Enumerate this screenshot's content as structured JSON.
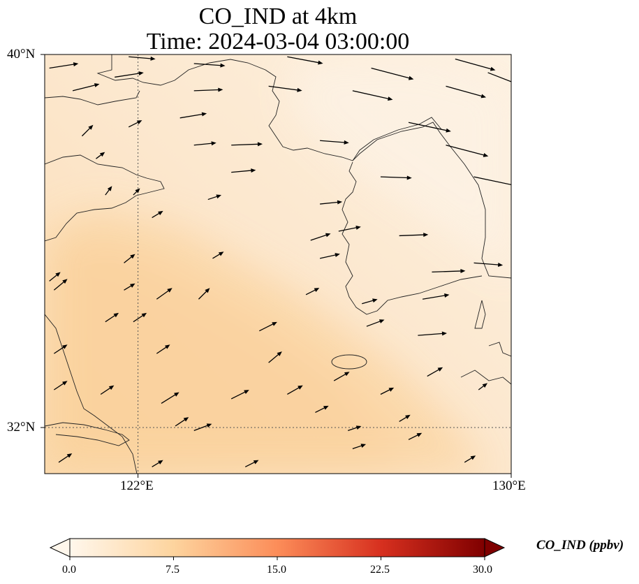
{
  "title": {
    "line1": "CO_IND at 4km",
    "line2": "Time: 2024-03-04 03:00:00"
  },
  "map": {
    "lon_range": [
      120,
      130
    ],
    "lat_range": [
      30.75,
      40
    ],
    "gridlines": {
      "lon": [
        122
      ],
      "lat": [
        32
      ],
      "style": "dotted"
    },
    "field_background": "#fcebd6",
    "plume_color": "#fbd6a4"
  },
  "axes": {
    "y_ticks": [
      {
        "label": "40°N",
        "lat": 40
      },
      {
        "label": "32°N",
        "lat": 32
      }
    ],
    "x_ticks": [
      {
        "label": "122°E",
        "lon": 122
      },
      {
        "label": "130°E",
        "lon": 130
      }
    ]
  },
  "colorbar": {
    "title": "CO_IND (ppbv)",
    "colormap": "OrRd",
    "min": 0.0,
    "max": 30.0,
    "extend": "both",
    "ticks": [
      "0.0",
      "7.5",
      "15.0",
      "22.5",
      "30.0"
    ],
    "colors": [
      "#fff7ec",
      "#fdd49e",
      "#fc8d59",
      "#d7301f",
      "#7f0000"
    ]
  },
  "wind_vectors": [
    {
      "lon": 120.1,
      "lat": 39.7,
      "u": 1.3,
      "v": 0.2
    },
    {
      "lon": 120.6,
      "lat": 39.2,
      "u": 1.2,
      "v": 0.3
    },
    {
      "lon": 121.8,
      "lat": 39.95,
      "u": 1.2,
      "v": -0.1
    },
    {
      "lon": 123.2,
      "lat": 39.8,
      "u": 1.4,
      "v": -0.1
    },
    {
      "lon": 125.2,
      "lat": 39.95,
      "u": 1.6,
      "v": -0.3
    },
    {
      "lon": 127.0,
      "lat": 39.7,
      "u": 1.9,
      "v": -0.5
    },
    {
      "lon": 128.8,
      "lat": 39.9,
      "u": 1.8,
      "v": -0.5
    },
    {
      "lon": 129.5,
      "lat": 39.6,
      "u": 1.8,
      "v": -0.7
    },
    {
      "lon": 121.5,
      "lat": 39.5,
      "u": 1.3,
      "v": 0.2
    },
    {
      "lon": 123.2,
      "lat": 39.2,
      "u": 1.3,
      "v": 0.05
    },
    {
      "lon": 124.8,
      "lat": 39.3,
      "u": 1.5,
      "v": -0.2
    },
    {
      "lon": 126.6,
      "lat": 39.2,
      "u": 1.8,
      "v": -0.4
    },
    {
      "lon": 128.6,
      "lat": 39.3,
      "u": 1.8,
      "v": -0.5
    },
    {
      "lon": 121.8,
      "lat": 38.4,
      "u": 0.6,
      "v": 0.3
    },
    {
      "lon": 120.8,
      "lat": 38.2,
      "u": 0.5,
      "v": 0.5
    },
    {
      "lon": 122.9,
      "lat": 38.6,
      "u": 1.2,
      "v": 0.2
    },
    {
      "lon": 124.0,
      "lat": 38.0,
      "u": 1.4,
      "v": 0.05
    },
    {
      "lon": 125.9,
      "lat": 38.1,
      "u": 1.3,
      "v": -0.1
    },
    {
      "lon": 127.8,
      "lat": 38.5,
      "u": 1.9,
      "v": -0.4
    },
    {
      "lon": 128.6,
      "lat": 38.0,
      "u": 1.9,
      "v": -0.5
    },
    {
      "lon": 123.2,
      "lat": 38.0,
      "u": 1.0,
      "v": 0.1
    },
    {
      "lon": 121.1,
      "lat": 37.7,
      "u": 0.4,
      "v": 0.3
    },
    {
      "lon": 124.0,
      "lat": 37.4,
      "u": 1.1,
      "v": 0.1
    },
    {
      "lon": 127.2,
      "lat": 37.3,
      "u": 1.4,
      "v": -0.05
    },
    {
      "lon": 129.2,
      "lat": 37.3,
      "u": 1.9,
      "v": -0.4
    },
    {
      "lon": 121.3,
      "lat": 36.9,
      "u": 0.3,
      "v": 0.4
    },
    {
      "lon": 121.9,
      "lat": 36.9,
      "u": 0.3,
      "v": 0.3
    },
    {
      "lon": 123.5,
      "lat": 36.8,
      "u": 0.6,
      "v": 0.2
    },
    {
      "lon": 122.3,
      "lat": 36.4,
      "u": 0.5,
      "v": 0.3
    },
    {
      "lon": 125.9,
      "lat": 36.7,
      "u": 1.0,
      "v": 0.1
    },
    {
      "lon": 126.3,
      "lat": 36.1,
      "u": 1.0,
      "v": 0.2
    },
    {
      "lon": 125.7,
      "lat": 35.9,
      "u": 0.9,
      "v": 0.3
    },
    {
      "lon": 127.6,
      "lat": 36.0,
      "u": 1.3,
      "v": 0.05
    },
    {
      "lon": 129.2,
      "lat": 35.4,
      "u": 1.3,
      "v": -0.1
    },
    {
      "lon": 120.1,
      "lat": 35.0,
      "u": 0.5,
      "v": 0.4
    },
    {
      "lon": 121.7,
      "lat": 35.4,
      "u": 0.5,
      "v": 0.4
    },
    {
      "lon": 123.6,
      "lat": 35.5,
      "u": 0.5,
      "v": 0.3
    },
    {
      "lon": 125.9,
      "lat": 35.5,
      "u": 0.9,
      "v": 0.2
    },
    {
      "lon": 128.3,
      "lat": 35.2,
      "u": 1.5,
      "v": 0.05
    },
    {
      "lon": 120.2,
      "lat": 34.8,
      "u": 0.6,
      "v": 0.5
    },
    {
      "lon": 121.7,
      "lat": 34.8,
      "u": 0.5,
      "v": 0.3
    },
    {
      "lon": 122.4,
      "lat": 34.6,
      "u": 0.7,
      "v": 0.5
    },
    {
      "lon": 123.3,
      "lat": 34.6,
      "u": 0.5,
      "v": 0.5
    },
    {
      "lon": 125.6,
      "lat": 34.7,
      "u": 0.6,
      "v": 0.3
    },
    {
      "lon": 126.8,
      "lat": 34.5,
      "u": 0.7,
      "v": 0.2
    },
    {
      "lon": 128.1,
      "lat": 34.6,
      "u": 1.2,
      "v": 0.2
    },
    {
      "lon": 121.3,
      "lat": 34.1,
      "u": 0.6,
      "v": 0.4
    },
    {
      "lon": 121.9,
      "lat": 34.1,
      "u": 0.6,
      "v": 0.4
    },
    {
      "lon": 124.6,
      "lat": 33.9,
      "u": 0.8,
      "v": 0.4
    },
    {
      "lon": 126.9,
      "lat": 34.0,
      "u": 0.8,
      "v": 0.3
    },
    {
      "lon": 128.0,
      "lat": 33.8,
      "u": 1.3,
      "v": 0.1
    },
    {
      "lon": 120.2,
      "lat": 33.4,
      "u": 0.6,
      "v": 0.4
    },
    {
      "lon": 122.4,
      "lat": 33.4,
      "u": 0.6,
      "v": 0.4
    },
    {
      "lon": 124.8,
      "lat": 33.2,
      "u": 0.6,
      "v": 0.5
    },
    {
      "lon": 126.2,
      "lat": 32.8,
      "u": 0.7,
      "v": 0.4
    },
    {
      "lon": 128.2,
      "lat": 32.9,
      "u": 0.7,
      "v": 0.4
    },
    {
      "lon": 120.2,
      "lat": 32.6,
      "u": 0.6,
      "v": 0.4
    },
    {
      "lon": 121.2,
      "lat": 32.5,
      "u": 0.6,
      "v": 0.4
    },
    {
      "lon": 122.5,
      "lat": 32.3,
      "u": 0.8,
      "v": 0.5
    },
    {
      "lon": 124.0,
      "lat": 32.4,
      "u": 0.8,
      "v": 0.4
    },
    {
      "lon": 125.2,
      "lat": 32.5,
      "u": 0.7,
      "v": 0.4
    },
    {
      "lon": 127.2,
      "lat": 32.5,
      "u": 0.6,
      "v": 0.3
    },
    {
      "lon": 129.3,
      "lat": 32.6,
      "u": 0.4,
      "v": 0.3
    },
    {
      "lon": 120.3,
      "lat": 31.0,
      "u": 0.6,
      "v": 0.4
    },
    {
      "lon": 122.3,
      "lat": 30.9,
      "u": 0.5,
      "v": 0.3
    },
    {
      "lon": 124.3,
      "lat": 30.9,
      "u": 0.6,
      "v": 0.3
    },
    {
      "lon": 126.6,
      "lat": 31.3,
      "u": 0.6,
      "v": 0.2
    },
    {
      "lon": 127.8,
      "lat": 31.5,
      "u": 0.6,
      "v": 0.3
    },
    {
      "lon": 129.0,
      "lat": 31.0,
      "u": 0.5,
      "v": 0.3
    },
    {
      "lon": 122.8,
      "lat": 31.8,
      "u": 0.6,
      "v": 0.4
    },
    {
      "lon": 123.2,
      "lat": 31.7,
      "u": 0.8,
      "v": 0.3
    },
    {
      "lon": 126.5,
      "lat": 31.7,
      "u": 0.6,
      "v": 0.2
    },
    {
      "lon": 127.6,
      "lat": 31.9,
      "u": 0.5,
      "v": 0.3
    },
    {
      "lon": 125.8,
      "lat": 32.1,
      "u": 0.6,
      "v": 0.3
    }
  ]
}
